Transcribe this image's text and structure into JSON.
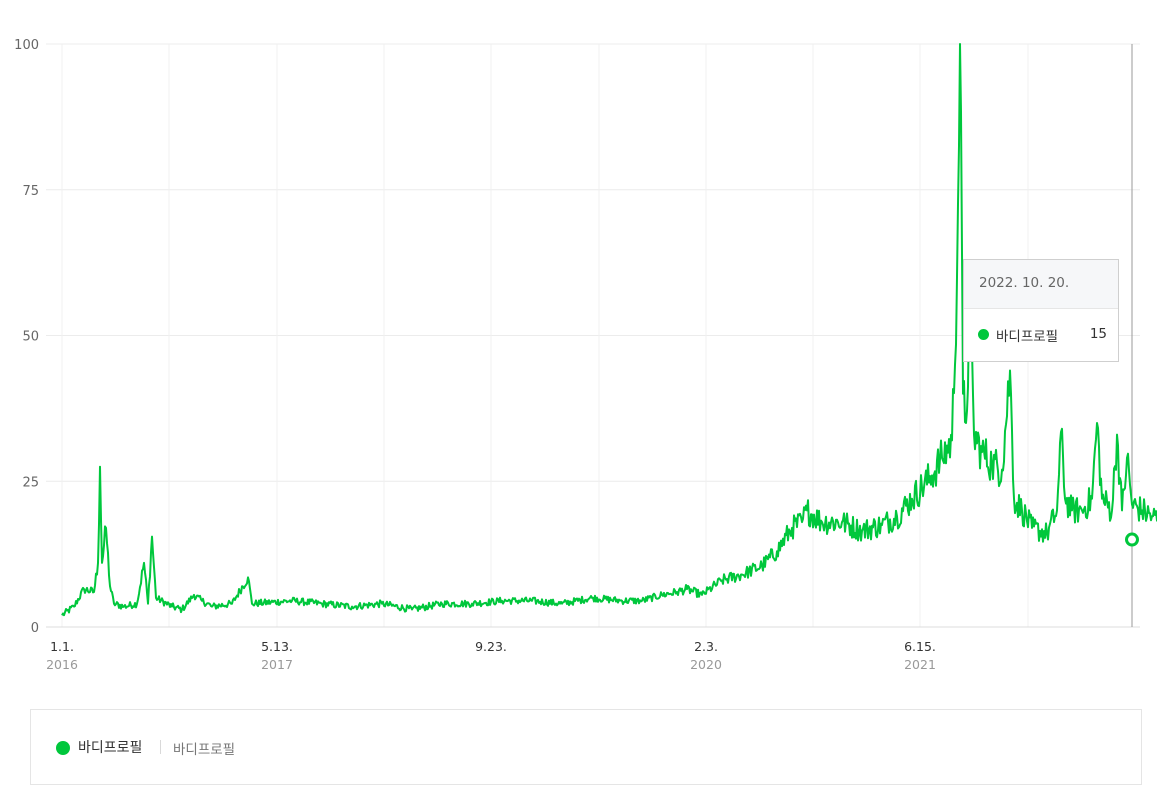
{
  "chart_data": {
    "type": "line",
    "ylim": [
      0,
      100
    ],
    "y_ticks": [
      "0",
      "25",
      "50",
      "75",
      "100"
    ],
    "y_tick_values": [
      0,
      25,
      50,
      75,
      100
    ],
    "grid": true,
    "x_tick_labels": [
      {
        "md": "1.1.",
        "year": "2016"
      },
      {
        "md": "5.13.",
        "year": "2017"
      },
      {
        "md": "9.23.",
        "year": ""
      },
      {
        "md": "2.3.",
        "year": "2020"
      },
      {
        "md": "6.15.",
        "year": "2021"
      }
    ],
    "series": [
      {
        "name": "바디프로필",
        "color": "#00c73c",
        "anchors": [
          [
            0,
            2
          ],
          [
            12,
            3.5
          ],
          [
            22,
            6.5
          ],
          [
            32,
            6
          ],
          [
            36,
            11
          ],
          [
            38,
            27.5
          ],
          [
            40,
            11
          ],
          [
            44,
            17
          ],
          [
            48,
            7
          ],
          [
            52,
            4
          ],
          [
            62,
            3.5
          ],
          [
            75,
            4
          ],
          [
            82,
            11
          ],
          [
            86,
            4
          ],
          [
            90,
            15.5
          ],
          [
            94,
            5
          ],
          [
            110,
            3.5
          ],
          [
            120,
            3
          ],
          [
            132,
            5.5
          ],
          [
            140,
            4.5
          ],
          [
            150,
            3.5
          ],
          [
            170,
            4
          ],
          [
            186,
            8.5
          ],
          [
            190,
            4
          ],
          [
            230,
            4.5
          ],
          [
            260,
            4
          ],
          [
            290,
            3.5
          ],
          [
            320,
            4
          ],
          [
            350,
            3
          ],
          [
            380,
            4
          ],
          [
            410,
            4
          ],
          [
            440,
            4.5
          ],
          [
            470,
            4.5
          ],
          [
            500,
            4
          ],
          [
            530,
            5
          ],
          [
            560,
            4.5
          ],
          [
            580,
            4.5
          ],
          [
            600,
            5.5
          ],
          [
            615,
            6
          ],
          [
            625,
            6.5
          ],
          [
            640,
            5.5
          ],
          [
            660,
            8
          ],
          [
            680,
            9
          ],
          [
            700,
            10.5
          ],
          [
            715,
            13
          ],
          [
            730,
            17
          ],
          [
            740,
            18
          ],
          [
            745,
            20
          ],
          [
            760,
            18
          ],
          [
            780,
            18
          ],
          [
            800,
            16.5
          ],
          [
            820,
            17.5
          ],
          [
            835,
            19
          ],
          [
            850,
            22
          ],
          [
            870,
            26
          ],
          [
            880,
            29
          ],
          [
            890,
            32
          ],
          [
            895,
            60
          ],
          [
            898,
            100
          ],
          [
            901,
            40
          ],
          [
            904,
            35
          ],
          [
            908,
            55
          ],
          [
            912,
            33
          ],
          [
            920,
            30
          ],
          [
            930,
            28
          ],
          [
            940,
            27
          ],
          [
            948,
            44
          ],
          [
            952,
            22
          ],
          [
            960,
            20
          ],
          [
            970,
            17
          ],
          [
            985,
            16
          ],
          [
            995,
            20
          ],
          [
            1000,
            34
          ],
          [
            1003,
            22
          ],
          [
            1010,
            20
          ],
          [
            1020,
            20
          ],
          [
            1030,
            22
          ],
          [
            1035,
            35
          ],
          [
            1040,
            22
          ],
          [
            1050,
            20
          ],
          [
            1055,
            33
          ],
          [
            1060,
            20
          ],
          [
            1065,
            29
          ],
          [
            1070,
            21
          ],
          [
            1080,
            20
          ],
          [
            1090,
            19
          ],
          [
            1100,
            18
          ],
          [
            1110,
            17
          ],
          [
            1115,
            13
          ],
          [
            1122,
            15
          ],
          [
            1128,
            15
          ]
        ]
      }
    ]
  },
  "tooltip": {
    "date": "2022. 10. 20.",
    "series_name": "바디프로필",
    "value": "15",
    "value_numeric": 15
  },
  "legend": {
    "items": [
      {
        "name": "바디프로필",
        "sub": "바디프로필",
        "color": "#00c73c"
      }
    ]
  }
}
